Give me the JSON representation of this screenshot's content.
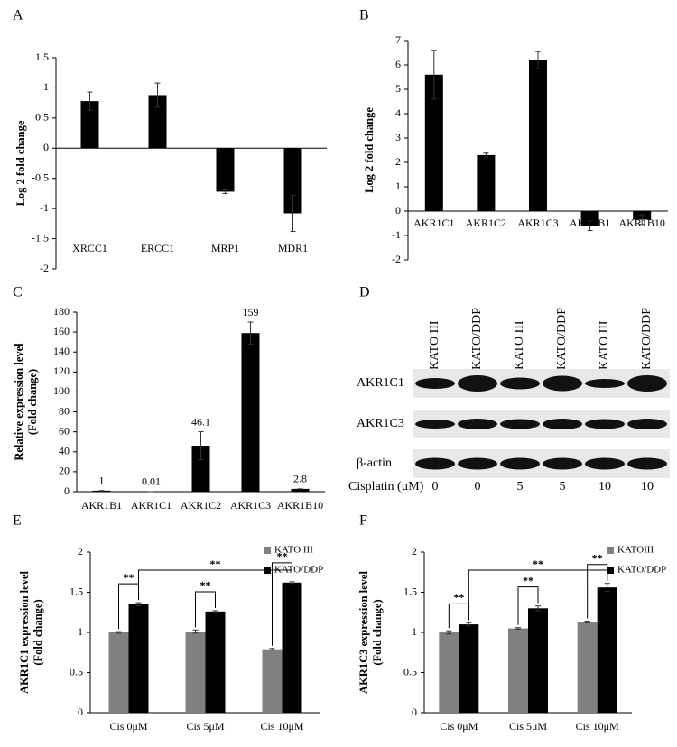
{
  "chart_data": [
    {
      "type": "bar",
      "panel": "A",
      "ylabel": [
        "Log 2 fold change"
      ],
      "categories": [
        "XRCC1",
        "ERCC1",
        "MRP1",
        "MDR1"
      ],
      "series": [
        {
          "color": "#000000",
          "values": [
            0.78,
            0.88,
            -0.72,
            -1.08
          ],
          "errors": [
            0.15,
            0.2,
            0.03,
            0.3
          ]
        }
      ],
      "ylim": [
        -2,
        1.5
      ],
      "yticks": [
        -2,
        -1.5,
        -1,
        -0.5,
        0,
        0.5,
        1,
        1.5
      ]
    },
    {
      "type": "bar",
      "panel": "B",
      "ylabel": [
        "Log 2 fold change"
      ],
      "categories": [
        "AKR1C1",
        "AKR1C2",
        "AKR1C3",
        "AKR1B1",
        "AKR1B10"
      ],
      "series": [
        {
          "color": "#000000",
          "values": [
            5.6,
            2.3,
            6.2,
            -0.6,
            -0.35
          ],
          "errors": [
            1.0,
            0.08,
            0.35,
            0.2,
            0.2
          ]
        }
      ],
      "ylim": [
        -2,
        7
      ],
      "yticks": [
        -2,
        -1,
        0,
        1,
        2,
        3,
        4,
        5,
        6,
        7
      ]
    },
    {
      "type": "bar",
      "panel": "C",
      "ylabel": [
        "Relative expression level",
        "(Fold change)"
      ],
      "categories": [
        "AKR1B1",
        "AKR1C1",
        "AKR1C2",
        "AKR1C3",
        "AKR1B10"
      ],
      "series": [
        {
          "color": "#000000",
          "values": [
            1,
            0.01,
            46.1,
            159,
            2.8
          ],
          "errors": [
            0,
            0,
            14,
            11,
            0
          ]
        }
      ],
      "data_labels": true,
      "ylim": [
        0,
        180
      ],
      "yticks": [
        0,
        20,
        40,
        60,
        80,
        100,
        120,
        140,
        160,
        180
      ]
    },
    {
      "type": "bar",
      "panel": "E",
      "ylabel": [
        "AKR1C1 expression level",
        "(Fold change)"
      ],
      "categories": [
        "Cis 0μM",
        "Cis 5μM",
        "Cis 10μM"
      ],
      "series": [
        {
          "name": "KATO III",
          "color": "#808080",
          "values": [
            1.0,
            1.01,
            0.79
          ],
          "errors": [
            0.01,
            0.02,
            0.01
          ]
        },
        {
          "name": "KATO/DDP",
          "color": "#000000",
          "values": [
            1.35,
            1.26,
            1.62
          ],
          "errors": [
            0.02,
            0.01,
            0.01
          ]
        }
      ],
      "annotations": [
        "**",
        "**",
        "**",
        "**"
      ],
      "ylim": [
        0,
        2
      ],
      "yticks": [
        0,
        0.5,
        1,
        1.5,
        2
      ]
    },
    {
      "type": "bar",
      "panel": "F",
      "ylabel": [
        "AKR1C3  expression level",
        "(Fold change)"
      ],
      "categories": [
        "Cis 0μM",
        "Cis 5μM",
        "Cis 10μM"
      ],
      "series": [
        {
          "name": "KATOIII",
          "color": "#808080",
          "values": [
            1.0,
            1.05,
            1.13
          ],
          "errors": [
            0.02,
            0.01,
            0.01
          ]
        },
        {
          "name": "KATO/DDP",
          "color": "#000000",
          "values": [
            1.1,
            1.3,
            1.56
          ],
          "errors": [
            0.02,
            0.03,
            0.05
          ]
        }
      ],
      "annotations": [
        "**",
        "**",
        "**",
        "**"
      ],
      "ylim": [
        0,
        2
      ],
      "yticks": [
        0,
        0.5,
        1,
        1.5,
        2
      ]
    }
  ],
  "blot": {
    "panel": "D",
    "lanes": [
      "KATO III",
      "KATO/DDP",
      "KATO III",
      "KATO/DDP",
      "KATO III",
      "KATO/DDP"
    ],
    "rows": [
      "AKR1C1",
      "AKR1C3",
      "β-actin"
    ],
    "dose_label": "Cisplatin (μM)",
    "doses": [
      0,
      0,
      5,
      5,
      10,
      10
    ]
  }
}
